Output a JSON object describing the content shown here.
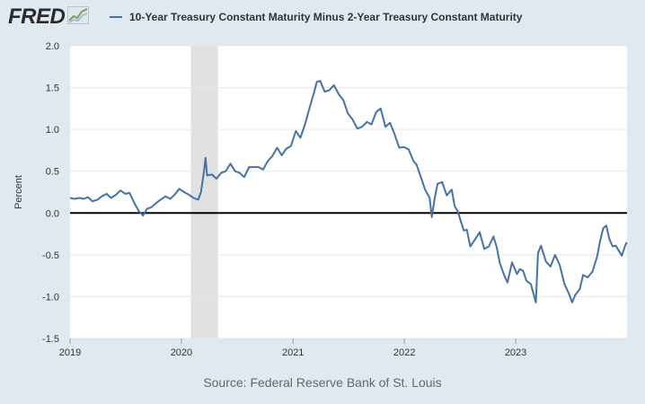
{
  "header": {
    "logo_text": "FRED",
    "logo_icon": "line-chart-icon",
    "legend_label": "10-Year Treasury Constant Maturity Minus 2-Year Treasury Constant Maturity"
  },
  "source": "Source: Federal Reserve Bank of St. Louis",
  "colors": {
    "series": "#4572a7",
    "recession": "#e1e1e1",
    "zero_line": "#000000",
    "grid": "#e6e6e6",
    "background": "#e1e9f0"
  },
  "chart_data": {
    "type": "line",
    "title": "",
    "xlabel": "",
    "ylabel": "Percent",
    "ylim": [
      -1.5,
      2.0
    ],
    "yticks": [
      -1.5,
      -1.0,
      -0.5,
      0.0,
      0.5,
      1.0,
      1.5,
      2.0
    ],
    "ytick_labels": [
      "-1.5",
      "-1.0",
      "-0.5",
      "0.0",
      "0.5",
      "1.0",
      "1.5",
      "2.0"
    ],
    "xlim": [
      "2019-01-01",
      "2024-01-01"
    ],
    "xticks": [
      "2019-01-01",
      "2020-01-01",
      "2021-01-01",
      "2022-01-01",
      "2023-01-01"
    ],
    "xtick_labels": [
      "2019",
      "2020",
      "2021",
      "2022",
      "2023"
    ],
    "grid": true,
    "legend_placement": "top",
    "recession_shading": [
      {
        "start": "2020-02-01",
        "end": "2020-04-30"
      }
    ],
    "series": [
      {
        "name": "10-Year Treasury Constant Maturity Minus 2-Year Treasury Constant Maturity",
        "points": [
          [
            "2019-01-01",
            0.18
          ],
          [
            "2019-01-15",
            0.17
          ],
          [
            "2019-02-01",
            0.18
          ],
          [
            "2019-02-15",
            0.17
          ],
          [
            "2019-03-01",
            0.19
          ],
          [
            "2019-03-15",
            0.14
          ],
          [
            "2019-04-01",
            0.16
          ],
          [
            "2019-04-15",
            0.2
          ],
          [
            "2019-05-01",
            0.23
          ],
          [
            "2019-05-15",
            0.18
          ],
          [
            "2019-06-01",
            0.22
          ],
          [
            "2019-06-15",
            0.27
          ],
          [
            "2019-07-01",
            0.23
          ],
          [
            "2019-07-15",
            0.24
          ],
          [
            "2019-08-01",
            0.11
          ],
          [
            "2019-08-15",
            0.02
          ],
          [
            "2019-08-28",
            -0.03
          ],
          [
            "2019-09-10",
            0.05
          ],
          [
            "2019-09-25",
            0.07
          ],
          [
            "2019-10-10",
            0.12
          ],
          [
            "2019-10-25",
            0.16
          ],
          [
            "2019-11-10",
            0.2
          ],
          [
            "2019-11-25",
            0.17
          ],
          [
            "2019-12-10",
            0.22
          ],
          [
            "2019-12-25",
            0.29
          ],
          [
            "2020-01-10",
            0.25
          ],
          [
            "2020-01-25",
            0.22
          ],
          [
            "2020-02-10",
            0.18
          ],
          [
            "2020-02-25",
            0.16
          ],
          [
            "2020-03-05",
            0.25
          ],
          [
            "2020-03-15",
            0.5
          ],
          [
            "2020-03-20",
            0.66
          ],
          [
            "2020-03-25",
            0.45
          ],
          [
            "2020-04-10",
            0.46
          ],
          [
            "2020-04-25",
            0.41
          ],
          [
            "2020-05-10",
            0.48
          ],
          [
            "2020-05-25",
            0.5
          ],
          [
            "2020-06-10",
            0.59
          ],
          [
            "2020-06-25",
            0.5
          ],
          [
            "2020-07-10",
            0.48
          ],
          [
            "2020-07-25",
            0.43
          ],
          [
            "2020-08-10",
            0.55
          ],
          [
            "2020-08-25",
            0.55
          ],
          [
            "2020-09-10",
            0.55
          ],
          [
            "2020-09-25",
            0.52
          ],
          [
            "2020-10-10",
            0.62
          ],
          [
            "2020-10-25",
            0.68
          ],
          [
            "2020-11-10",
            0.78
          ],
          [
            "2020-11-25",
            0.69
          ],
          [
            "2020-12-10",
            0.77
          ],
          [
            "2020-12-25",
            0.8
          ],
          [
            "2021-01-10",
            0.98
          ],
          [
            "2021-01-25",
            0.9
          ],
          [
            "2021-02-10",
            1.07
          ],
          [
            "2021-02-25",
            1.27
          ],
          [
            "2021-03-10",
            1.43
          ],
          [
            "2021-03-20",
            1.57
          ],
          [
            "2021-03-31",
            1.58
          ],
          [
            "2021-04-15",
            1.45
          ],
          [
            "2021-04-30",
            1.47
          ],
          [
            "2021-05-15",
            1.53
          ],
          [
            "2021-05-31",
            1.42
          ],
          [
            "2021-06-15",
            1.35
          ],
          [
            "2021-06-30",
            1.19
          ],
          [
            "2021-07-15",
            1.12
          ],
          [
            "2021-07-31",
            1.01
          ],
          [
            "2021-08-15",
            1.03
          ],
          [
            "2021-08-31",
            1.09
          ],
          [
            "2021-09-15",
            1.06
          ],
          [
            "2021-10-01",
            1.21
          ],
          [
            "2021-10-15",
            1.25
          ],
          [
            "2021-10-31",
            1.03
          ],
          [
            "2021-11-15",
            1.08
          ],
          [
            "2021-11-30",
            0.94
          ],
          [
            "2021-12-15",
            0.78
          ],
          [
            "2021-12-31",
            0.79
          ],
          [
            "2022-01-15",
            0.76
          ],
          [
            "2022-01-31",
            0.62
          ],
          [
            "2022-02-10",
            0.58
          ],
          [
            "2022-02-25",
            0.42
          ],
          [
            "2022-03-10",
            0.28
          ],
          [
            "2022-03-25",
            0.18
          ],
          [
            "2022-04-01",
            -0.05
          ],
          [
            "2022-04-10",
            0.17
          ],
          [
            "2022-04-20",
            0.35
          ],
          [
            "2022-05-05",
            0.37
          ],
          [
            "2022-05-20",
            0.21
          ],
          [
            "2022-06-05",
            0.28
          ],
          [
            "2022-06-15",
            0.08
          ],
          [
            "2022-06-25",
            0.02
          ],
          [
            "2022-07-05",
            -0.1
          ],
          [
            "2022-07-15",
            -0.21
          ],
          [
            "2022-07-25",
            -0.2
          ],
          [
            "2022-08-05",
            -0.4
          ],
          [
            "2022-08-20",
            -0.32
          ],
          [
            "2022-09-05",
            -0.23
          ],
          [
            "2022-09-20",
            -0.43
          ],
          [
            "2022-10-05",
            -0.4
          ],
          [
            "2022-10-20",
            -0.28
          ],
          [
            "2022-10-31",
            -0.41
          ],
          [
            "2022-11-10",
            -0.6
          ],
          [
            "2022-11-25",
            -0.75
          ],
          [
            "2022-12-05",
            -0.83
          ],
          [
            "2022-12-20",
            -0.59
          ],
          [
            "2023-01-05",
            -0.73
          ],
          [
            "2023-01-15",
            -0.67
          ],
          [
            "2023-01-25",
            -0.69
          ],
          [
            "2023-02-05",
            -0.81
          ],
          [
            "2023-02-20",
            -0.85
          ],
          [
            "2023-03-08",
            -1.07
          ],
          [
            "2023-03-15",
            -0.48
          ],
          [
            "2023-03-25",
            -0.39
          ],
          [
            "2023-04-10",
            -0.58
          ],
          [
            "2023-04-25",
            -0.64
          ],
          [
            "2023-05-10",
            -0.5
          ],
          [
            "2023-05-25",
            -0.62
          ],
          [
            "2023-06-10",
            -0.85
          ],
          [
            "2023-06-25",
            -0.97
          ],
          [
            "2023-07-05",
            -1.07
          ],
          [
            "2023-07-15",
            -0.98
          ],
          [
            "2023-07-30",
            -0.91
          ],
          [
            "2023-08-10",
            -0.74
          ],
          [
            "2023-08-25",
            -0.77
          ],
          [
            "2023-09-10",
            -0.7
          ],
          [
            "2023-09-25",
            -0.52
          ],
          [
            "2023-10-05",
            -0.33
          ],
          [
            "2023-10-15",
            -0.18
          ],
          [
            "2023-10-25",
            -0.15
          ],
          [
            "2023-11-05",
            -0.32
          ],
          [
            "2023-11-15",
            -0.4
          ],
          [
            "2023-11-25",
            -0.39
          ],
          [
            "2023-12-05",
            -0.45
          ],
          [
            "2023-12-15",
            -0.51
          ],
          [
            "2023-12-25",
            -0.4
          ],
          [
            "2023-12-31",
            -0.35
          ]
        ]
      }
    ]
  }
}
